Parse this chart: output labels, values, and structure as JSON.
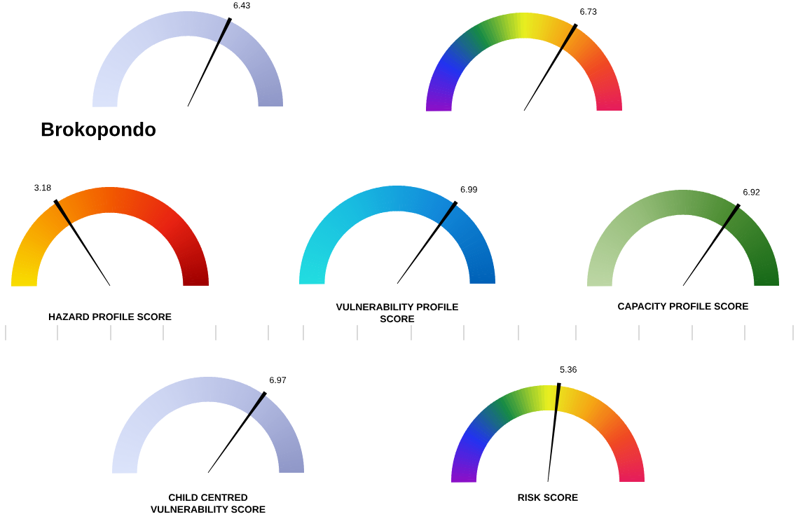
{
  "chart_data": [
    {
      "type": "other",
      "values": [
        6.43
      ],
      "data_labels": true
    },
    {
      "type": "other",
      "values": [
        6.73
      ],
      "data_labels": true
    },
    {
      "type": "other",
      "title": "Brokopondo"
    },
    {
      "type": "other",
      "values": [
        3.18
      ],
      "data_labels": true,
      "xlabel": "HAZARD PROFILE SCORE"
    },
    {
      "type": "other",
      "values": [
        6.99
      ],
      "data_labels": true,
      "xlabel": "VULNERABILITY PROFILE\nSCORE"
    },
    {
      "type": "other",
      "values": [
        6.92
      ],
      "data_labels": true,
      "xlabel": "CAPACITY PROFILE SCORE"
    },
    {
      "type": "other",
      "values": [
        6.97
      ],
      "data_labels": true,
      "xlabel": "CHILD CENTRED\nVULNERABILITY SCORE"
    },
    {
      "type": "other",
      "values": [
        5.36
      ],
      "data_labels": true,
      "xlabel": "RISK SCORE"
    }
  ]
}
